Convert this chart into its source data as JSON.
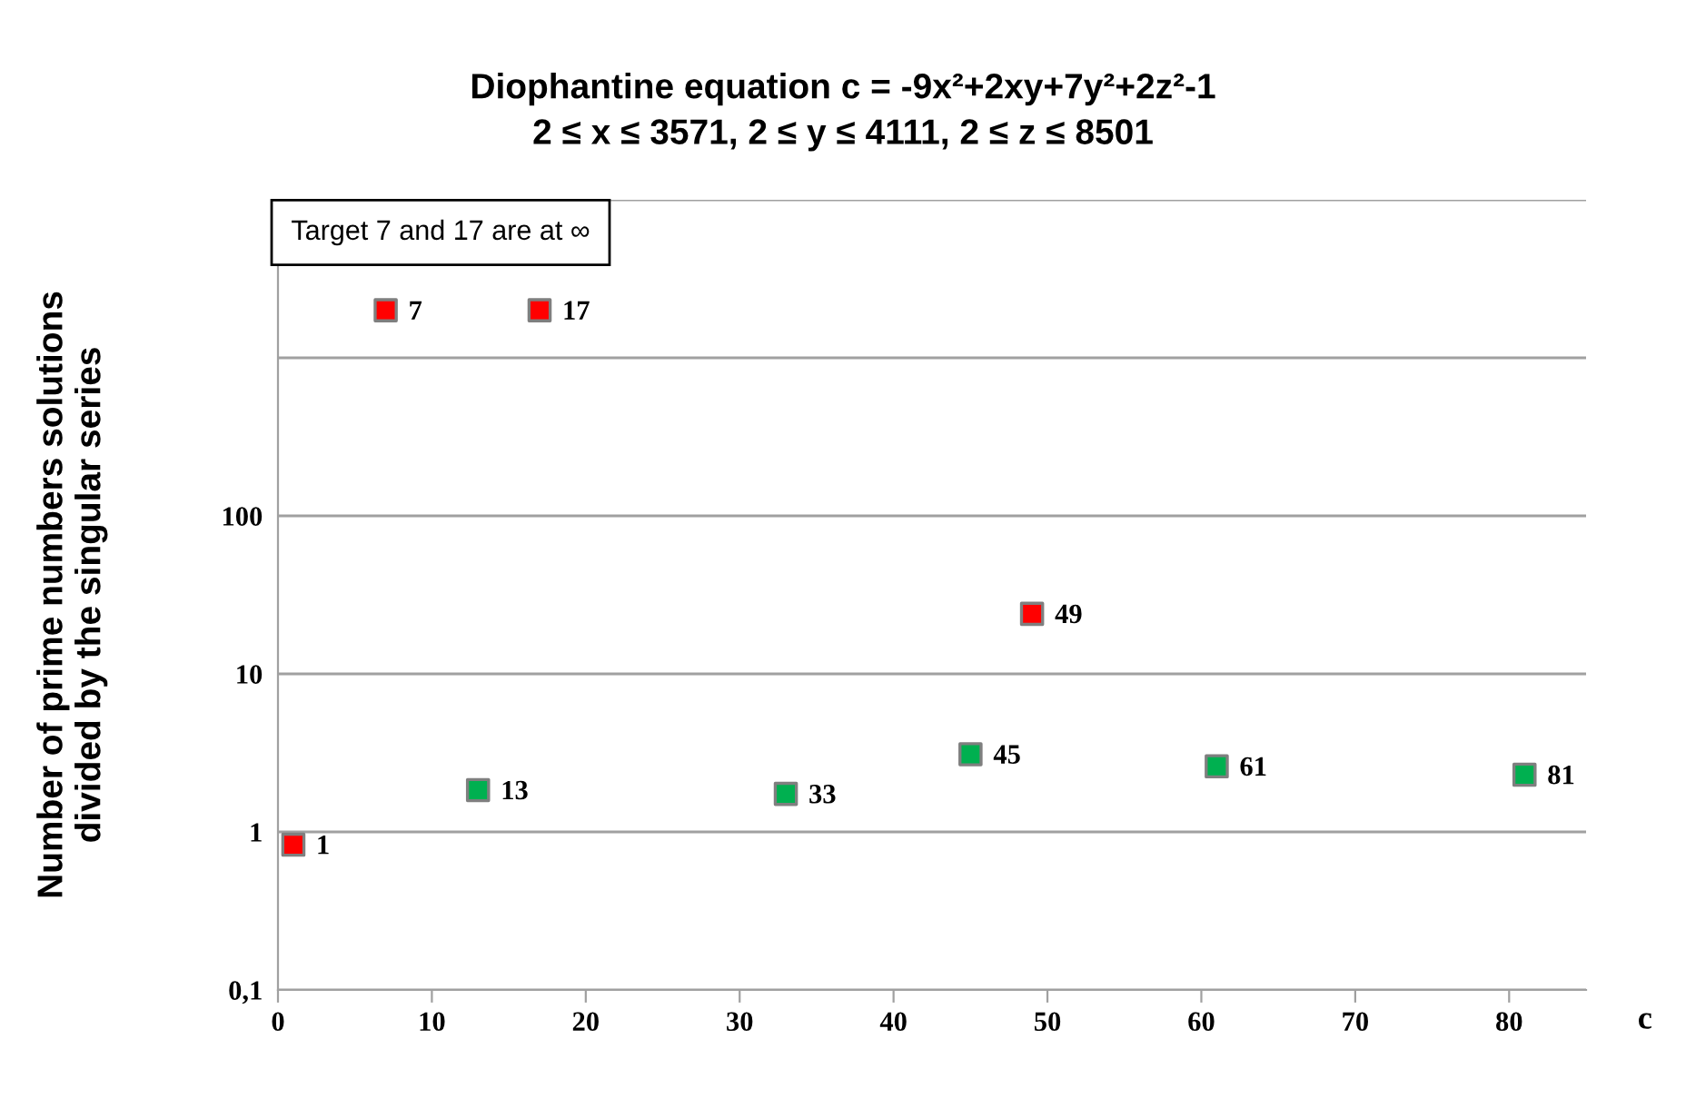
{
  "chart_data": {
    "type": "scatter",
    "title": "Diophantine equation c = -9x²+2xy+7y²+2z²-1\n2 ≤ x ≤ 3571, 2 ≤ y ≤ 4111, 2 ≤ z ≤ 8501",
    "xlabel": "c",
    "ylabel": "Number of prime numbers solutions\ndivided by the singular series",
    "annotations": [
      "Target 7 and 17 are at ∞",
      {
        "text": "1",
        "x": 1,
        "y": 0.83
      },
      {
        "text": "7",
        "x": 7,
        "y": 2000
      },
      {
        "text": "17",
        "x": 17,
        "y": 2000
      },
      {
        "text": "49",
        "x": 49,
        "y": 24
      },
      {
        "text": "13",
        "x": 13,
        "y": 1.84
      },
      {
        "text": "33",
        "x": 33,
        "y": 1.74
      },
      {
        "text": "45",
        "x": 45,
        "y": 3.1
      },
      {
        "text": "61",
        "x": 61,
        "y": 2.6
      },
      {
        "text": "81",
        "x": 81,
        "y": 2.3
      }
    ],
    "series": [
      {
        "color": "#ff0000",
        "x": [
          1,
          7,
          17,
          49
        ],
        "values": [
          0.83,
          2000,
          2000,
          24
        ]
      },
      {
        "color": "#00b050",
        "x": [
          13,
          33,
          45,
          61,
          81
        ],
        "values": [
          1.84,
          1.74,
          3.1,
          2.6,
          2.3
        ]
      }
    ],
    "log": "y",
    "xlim": [
      0,
      85
    ],
    "xticks": [
      0,
      10,
      20,
      30,
      40,
      50,
      60,
      70,
      80
    ],
    "ylim": [
      0.1,
      10000
    ],
    "yticks": [
      {
        "value": 0.1,
        "label": "0,1"
      },
      1,
      10,
      100,
      {
        "value": 1000,
        "label": null
      },
      {
        "value": 10000,
        "label": null
      }
    ],
    "grid": "y",
    "legend": false,
    "marker": "square"
  }
}
